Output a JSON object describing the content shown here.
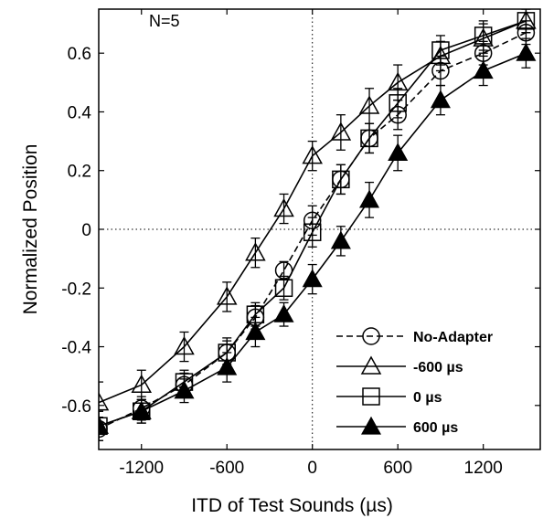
{
  "chart_data": {
    "type": "line",
    "title": "",
    "annotation": "N=5",
    "xlabel": "ITD of Test Sounds (µs)",
    "ylabel": "Normalized Position",
    "xlim": [
      -1500,
      1600
    ],
    "ylim": [
      -0.75,
      0.75
    ],
    "xticks": [
      -1200,
      -600,
      0,
      600,
      1200
    ],
    "yticks": [
      -0.6,
      -0.4,
      -0.2,
      0,
      0.2,
      0.4,
      0.6
    ],
    "grid": false,
    "reference_lines": [
      "x=0",
      "y=0"
    ],
    "legend_position": "bottom-right",
    "x": [
      -1500,
      -1200,
      -900,
      -600,
      -400,
      -200,
      0,
      200,
      400,
      600,
      900,
      1200,
      1500
    ],
    "series": [
      {
        "name": "No-Adapter",
        "marker": "circle-open",
        "line": "dashed",
        "values": [
          -0.68,
          -0.61,
          -0.53,
          -0.42,
          -0.3,
          -0.14,
          0.03,
          0.17,
          0.31,
          0.39,
          0.54,
          0.6,
          0.67
        ],
        "errors": [
          0.04,
          0.04,
          0.04,
          0.05,
          0.04,
          0.03,
          0.05,
          0.05,
          0.05,
          0.05,
          0.05,
          0.04,
          0.04
        ]
      },
      {
        "name": "-600 µs",
        "marker": "triangle-open",
        "line": "solid",
        "values": [
          -0.59,
          -0.53,
          -0.4,
          -0.23,
          -0.08,
          0.07,
          0.25,
          0.33,
          0.42,
          0.5,
          0.59,
          0.65,
          0.71
        ],
        "errors": [
          0.07,
          0.05,
          0.05,
          0.05,
          0.05,
          0.05,
          0.05,
          0.06,
          0.06,
          0.06,
          0.05,
          0.05,
          0.04
        ]
      },
      {
        "name": "0  µs",
        "marker": "square-open",
        "line": "solid",
        "values": [
          -0.67,
          -0.62,
          -0.52,
          -0.42,
          -0.29,
          -0.2,
          -0.01,
          0.17,
          0.31,
          0.43,
          0.61,
          0.66,
          0.71
        ],
        "errors": [
          0.05,
          0.04,
          0.04,
          0.04,
          0.04,
          0.04,
          0.05,
          0.05,
          0.05,
          0.05,
          0.05,
          0.05,
          0.04
        ]
      },
      {
        "name": "600 µs",
        "marker": "triangle-filled",
        "line": "solid",
        "values": [
          -0.67,
          -0.62,
          -0.55,
          -0.47,
          -0.35,
          -0.29,
          -0.17,
          -0.04,
          0.1,
          0.26,
          0.44,
          0.54,
          0.6
        ],
        "errors": [
          0.05,
          0.04,
          0.04,
          0.05,
          0.05,
          0.04,
          0.05,
          0.05,
          0.06,
          0.06,
          0.05,
          0.05,
          0.05
        ]
      }
    ]
  }
}
